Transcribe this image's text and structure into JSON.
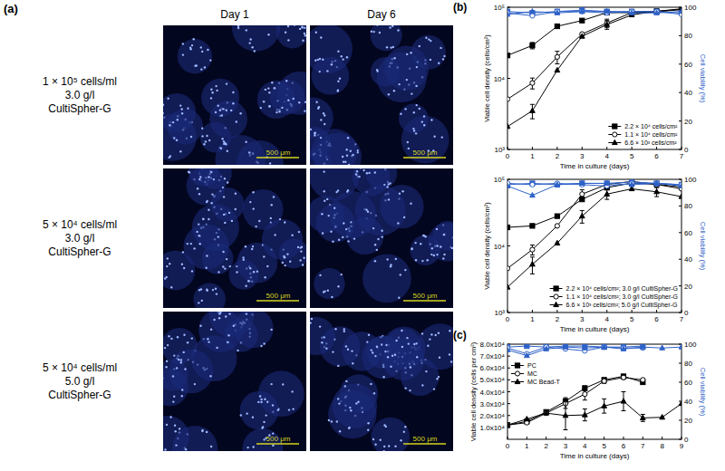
{
  "panel_a": {
    "panel_label": "(a)",
    "columns": [
      "Day 1",
      "Day 6"
    ],
    "rows": [
      {
        "label": [
          "1 × 10⁵ cells/ml",
          "3.0 g/l",
          "CultiSpher-G"
        ]
      },
      {
        "label": [
          "5 × 10⁴ cells/ml",
          "3.0 g/l",
          "CultiSpher-G"
        ]
      },
      {
        "label": [
          "5 × 10⁴ cells/ml",
          "5.0 g/l",
          "CultiSpher-G"
        ]
      }
    ],
    "scale_bar": "500 μm"
  },
  "chart_data": [
    {
      "type": "line",
      "panel_label": "(b)",
      "x_label": "Time in culture (days)",
      "y_label": "Viable cell density (cells/cm²)",
      "y2_label": "Cell viability (%)",
      "log": "y",
      "grid": false,
      "legend": "lower right",
      "x": [
        0,
        1,
        2,
        3,
        4,
        5,
        6,
        7
      ],
      "xlim": [
        0,
        7
      ],
      "xticks": [
        0,
        1,
        2,
        3,
        4,
        5,
        6,
        7
      ],
      "ylim": [
        1000,
        100000
      ],
      "yticks": [
        {
          "value": 1000,
          "label": "10³"
        },
        {
          "value": 10000,
          "label": "10⁴"
        },
        {
          "value": 100000,
          "label": "10⁵"
        }
      ],
      "y2lim": [
        0,
        100
      ],
      "y2ticks": [
        0,
        20,
        40,
        60,
        80,
        100
      ],
      "series": [
        {
          "name": "2.2 × 10⁴ cells/cm²",
          "color": "#000000",
          "marker": "square",
          "values": [
            21000,
            29000,
            54000,
            65000,
            84000,
            84000,
            88000,
            95000
          ],
          "errors": [
            null,
            3000,
            null,
            null,
            null,
            null,
            null,
            null
          ]
        },
        {
          "name": "1.1 × 10⁴ cells/cm²",
          "color": "#000000",
          "marker": "circle",
          "values": [
            5100,
            8600,
            20000,
            42000,
            60000,
            84000,
            86000,
            93000
          ],
          "errors": [
            null,
            1500,
            4000,
            null,
            8000,
            null,
            null,
            null
          ]
        },
        {
          "name": "6.6 × 10³ cells/cm²",
          "color": "#000000",
          "marker": "triangle",
          "values": [
            2100,
            3500,
            13000,
            39000,
            57000,
            78000,
            88000,
            93000
          ],
          "errors": [
            null,
            800,
            null,
            null,
            8000,
            null,
            null,
            null
          ]
        },
        {
          "color": "#2f62c8",
          "marker": "square",
          "axis": "y2",
          "values": [
            97,
            96,
            97,
            98,
            97,
            97,
            97,
            96
          ]
        },
        {
          "color": "#2f62c8",
          "marker": "circle",
          "axis": "y2",
          "values": [
            96,
            94,
            97,
            97,
            96,
            97,
            97,
            95
          ]
        },
        {
          "color": "#2f62c8",
          "marker": "triangle",
          "axis": "y2",
          "values": [
            95,
            97,
            96,
            97,
            97,
            96,
            96,
            97
          ]
        }
      ]
    },
    {
      "type": "line",
      "x_label": "Time in culture (days)",
      "y_label": "Viable cell density (cells/cm²)",
      "y2_label": "Cell viability (%)",
      "log": "y",
      "grid": false,
      "legend": "lower right",
      "x": [
        0,
        1,
        2,
        3,
        4,
        5,
        6,
        7
      ],
      "xlim": [
        0,
        7
      ],
      "xticks": [
        0,
        1,
        2,
        3,
        4,
        5,
        6,
        7
      ],
      "ylim": [
        1000,
        100000
      ],
      "yticks": [
        {
          "value": 1000,
          "label": "10³"
        },
        {
          "value": 10000,
          "label": "10⁴"
        },
        {
          "value": 100000,
          "label": "10⁵"
        }
      ],
      "y2lim": [
        0,
        100
      ],
      "y2ticks": [
        0,
        20,
        40,
        60,
        80,
        100
      ],
      "series": [
        {
          "name": "2.2 × 10⁴ cells/cm²; 3.0 g/l CultiSpher-G",
          "color": "#000000",
          "marker": "square",
          "values": [
            19000,
            20000,
            28000,
            50000,
            75000,
            88000,
            84000,
            77000
          ]
        },
        {
          "name": "1.1 × 10⁴ cells/cm²; 3.0 g/l CultiSpher-G",
          "color": "#000000",
          "marker": "circle",
          "values": [
            4600,
            8800,
            20000,
            60000,
            84000,
            93000,
            84000,
            72000
          ],
          "errors": [
            null,
            1500,
            null,
            10000,
            8000,
            null,
            null,
            null
          ]
        },
        {
          "name": "6.6 × 10³ cells/cm²; 5.0 g/l CultiSpher-G",
          "color": "#000000",
          "marker": "triangle",
          "values": [
            2400,
            5300,
            11000,
            28000,
            60000,
            72000,
            65000,
            55000
          ],
          "errors": [
            null,
            1500,
            null,
            6000,
            10000,
            null,
            10000,
            null
          ]
        },
        {
          "color": "#2f62c8",
          "marker": "square",
          "axis": "y2",
          "values": [
            96,
            97,
            96,
            97,
            97,
            98,
            97,
            96
          ]
        },
        {
          "color": "#2f62c8",
          "marker": "circle",
          "axis": "y2",
          "values": [
            97,
            96,
            97,
            96,
            95,
            97,
            97,
            96
          ]
        },
        {
          "color": "#2f62c8",
          "marker": "triangle",
          "axis": "y2",
          "values": [
            95,
            88,
            96,
            97,
            97,
            96,
            97,
            95
          ]
        }
      ]
    },
    {
      "type": "line",
      "panel_label": "(c)",
      "x_label": "Time in culture (days)",
      "y_label": "Viable cell density (cells per cm²)",
      "y2_label": "Cell viability (%)",
      "grid": false,
      "legend": "upper left",
      "x": [
        0,
        1,
        2,
        3,
        4,
        5,
        6,
        7,
        8,
        9
      ],
      "xlim": [
        0,
        9
      ],
      "xticks": [
        0,
        1,
        2,
        3,
        4,
        5,
        6,
        7,
        8,
        9
      ],
      "ylim": [
        0,
        80000
      ],
      "yticks": [
        {
          "value": 10000,
          "label": "1.0x10⁴"
        },
        {
          "value": 20000,
          "label": "2.0x10⁴"
        },
        {
          "value": 30000,
          "label": "3.0x10⁴"
        },
        {
          "value": 40000,
          "label": "4.0x10⁴"
        },
        {
          "value": 50000,
          "label": "5.0x10⁴"
        },
        {
          "value": 60000,
          "label": "6.0x10⁴"
        },
        {
          "value": 70000,
          "label": "7.0x10⁴"
        },
        {
          "value": 80000,
          "label": "8.0x10⁴"
        }
      ],
      "y2lim": [
        0,
        100
      ],
      "y2ticks": [
        0,
        20,
        40,
        60,
        80,
        100
      ],
      "series": [
        {
          "name": "PC",
          "color": "#000000",
          "marker": "square",
          "values": [
            12000,
            15000,
            23000,
            32000,
            43000,
            50000,
            53000,
            48000,
            null,
            null
          ],
          "errors": [
            null,
            null,
            null,
            3000,
            2000,
            1500,
            1000,
            null,
            null,
            null
          ]
        },
        {
          "name": "MC",
          "color": "#000000",
          "marker": "circle",
          "values": [
            12000,
            14000,
            22000,
            30000,
            38000,
            49000,
            52000,
            50000,
            null,
            null
          ],
          "errors": [
            null,
            null,
            null,
            4000,
            5000,
            2000,
            1500,
            1000,
            null,
            null
          ]
        },
        {
          "name": "MC Bead-T",
          "color": "#000000",
          "marker": "triangle",
          "values": [
            12000,
            17000,
            22000,
            20000,
            20500,
            28000,
            32000,
            18000,
            18500,
            30000
          ],
          "errors": [
            null,
            null,
            null,
            12000,
            5000,
            6000,
            8000,
            3000,
            null,
            null
          ]
        },
        {
          "color": "#2f62c8",
          "marker": "square",
          "axis": "y2",
          "values": [
            97,
            98,
            97,
            98,
            98,
            97,
            97,
            98,
            null,
            null
          ]
        },
        {
          "color": "#2f62c8",
          "marker": "circle",
          "axis": "y2",
          "values": [
            96,
            90,
            97,
            95,
            93,
            97,
            96,
            96,
            null,
            null
          ]
        },
        {
          "color": "#2f62c8",
          "marker": "triangle",
          "axis": "y2",
          "values": [
            94,
            88,
            95,
            97,
            96,
            97,
            95,
            97,
            96,
            97
          ]
        }
      ]
    }
  ]
}
